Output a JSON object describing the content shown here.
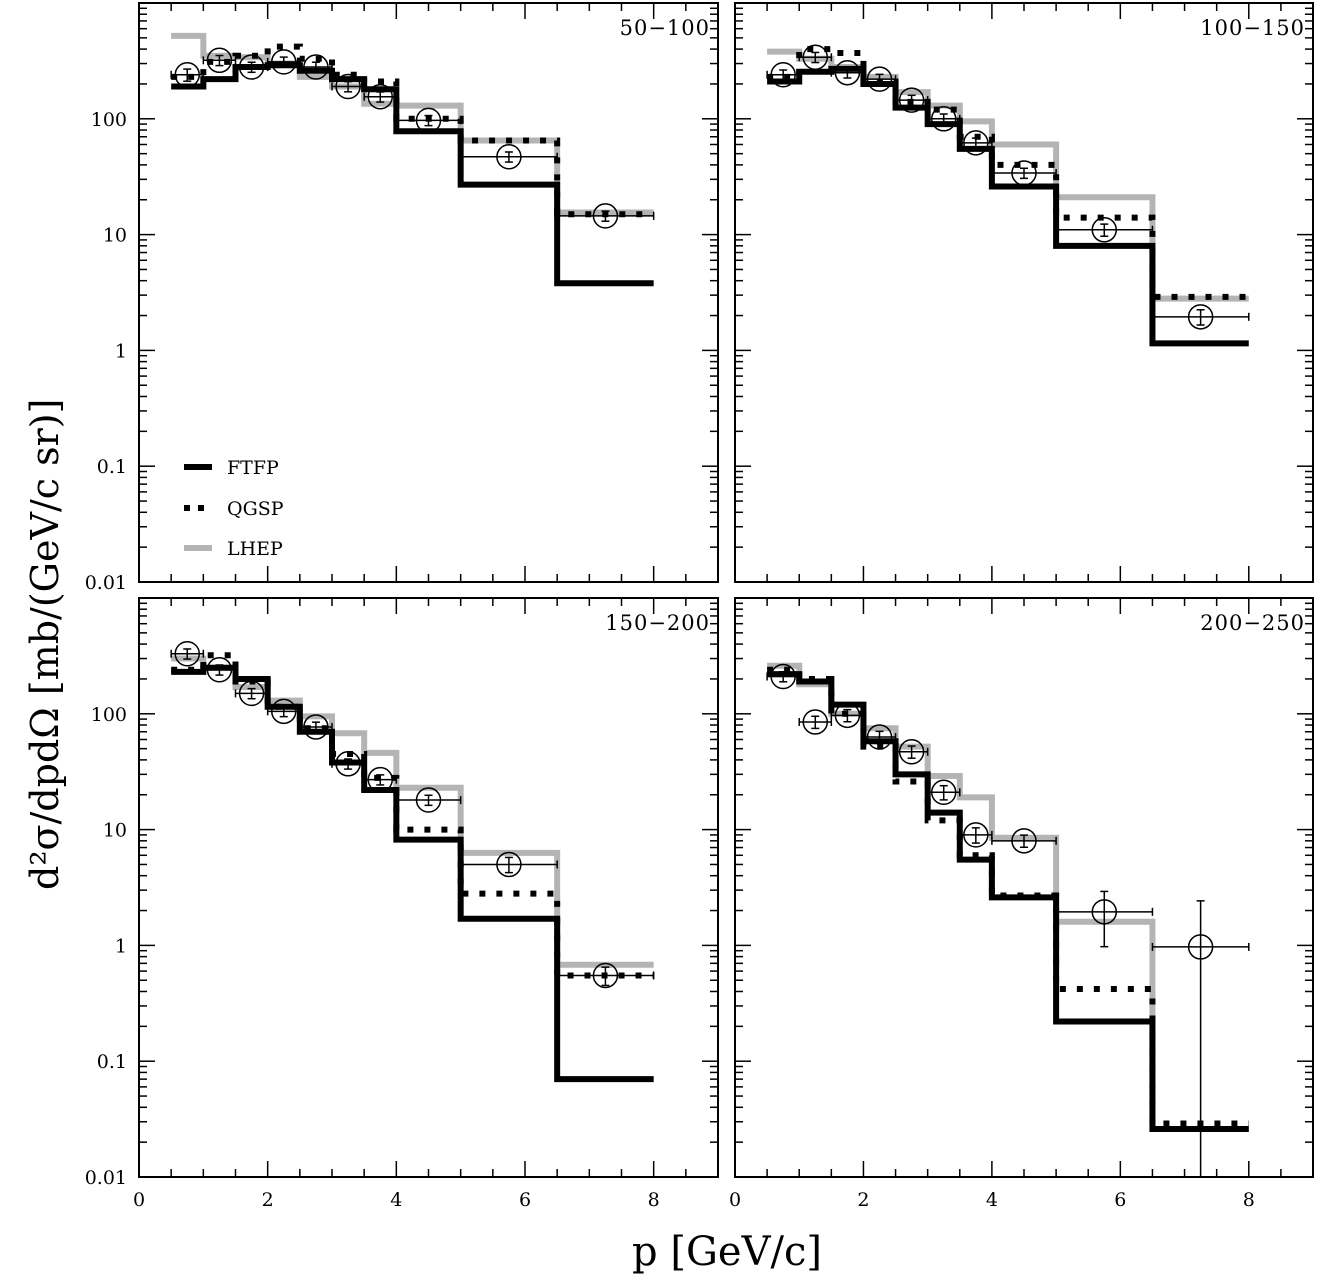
{
  "figure": {
    "xlabel": "p [GeV/c]",
    "ylabel": "d²σ/dpdΩ [mb/(GeV/c sr)]",
    "legend": [
      {
        "name": "FTFP",
        "style": "solid-black",
        "color": "#000000"
      },
      {
        "name": "QGSP",
        "style": "dotted-black",
        "color": "#000000"
      },
      {
        "name": "LHEP",
        "style": "solid-gray",
        "color": "#b4b4b4"
      }
    ],
    "colors": {
      "FTFP": "#000000",
      "QGSP": "#000000",
      "LHEP": "#b4b4b4",
      "data": "#000000"
    }
  },
  "chart_data": [
    {
      "type": "line",
      "title": "50−100",
      "xlim": [
        0,
        9
      ],
      "ylim": [
        0.01,
        1000
      ],
      "yscale": "log",
      "xticks": [
        "0",
        "2",
        "4",
        "6",
        "8"
      ],
      "yticks": [
        "0.01",
        "0.1",
        "1",
        "10",
        "100"
      ],
      "bin_edges": [
        0.5,
        1.0,
        1.5,
        2.0,
        2.5,
        3.0,
        3.5,
        4.0,
        5.0,
        6.5,
        8.0
      ],
      "series": [
        {
          "name": "FTFP",
          "values": [
            190,
            220,
            280,
            290,
            260,
            220,
            180,
            78,
            27,
            3.8
          ]
        },
        {
          "name": "QGSP",
          "values": [
            230,
            310,
            350,
            420,
            330,
            240,
            210,
            100,
            65,
            15
          ]
        },
        {
          "name": "LHEP",
          "values": [
            520,
            350,
            340,
            300,
            230,
            190,
            135,
            130,
            65,
            15.5
          ]
        }
      ],
      "data_points": {
        "x": [
          0.75,
          1.25,
          1.75,
          2.25,
          2.75,
          3.25,
          3.75,
          4.5,
          5.75,
          7.25
        ],
        "y": [
          240,
          320,
          280,
          310,
          280,
          190,
          155,
          97,
          47,
          14.5
        ],
        "yerr": [
          0.12,
          0.1,
          0.1,
          0.1,
          0.1,
          0.1,
          0.1,
          0.1,
          0.1,
          0.1
        ]
      }
    },
    {
      "type": "line",
      "title": "100−150",
      "xlim": [
        0,
        9
      ],
      "ylim": [
        0.01,
        1000
      ],
      "yscale": "log",
      "xticks": [
        "0",
        "2",
        "4",
        "6",
        "8"
      ],
      "yticks": [
        "0.01",
        "0.1",
        "1",
        "10",
        "100"
      ],
      "bin_edges": [
        0.5,
        1.0,
        1.5,
        2.0,
        2.5,
        3.0,
        3.5,
        4.0,
        5.0,
        6.5,
        8.0
      ],
      "series": [
        {
          "name": "FTFP",
          "values": [
            210,
            255,
            270,
            200,
            125,
            90,
            55,
            26,
            8,
            1.15
          ]
        },
        {
          "name": "QGSP",
          "values": [
            230,
            400,
            370,
            210,
            140,
            120,
            70,
            40,
            14,
            2.9
          ]
        },
        {
          "name": "LHEP",
          "values": [
            380,
            330,
            280,
            230,
            170,
            130,
            95,
            60,
            21,
            2.8
          ]
        }
      ],
      "data_points": {
        "x": [
          0.75,
          1.25,
          1.75,
          2.25,
          2.75,
          3.25,
          3.75,
          4.5,
          5.75,
          7.25
        ],
        "y": [
          240,
          340,
          250,
          220,
          145,
          100,
          62,
          34,
          11,
          1.95
        ],
        "yerr": [
          0.1,
          0.1,
          0.1,
          0.1,
          0.1,
          0.1,
          0.1,
          0.1,
          0.12,
          0.15
        ]
      }
    },
    {
      "type": "line",
      "title": "150−200",
      "xlim": [
        0,
        9
      ],
      "ylim": [
        0.01,
        1000
      ],
      "yscale": "log",
      "xticks": [
        "0",
        "2",
        "4",
        "6",
        "8"
      ],
      "yticks": [
        "0.01",
        "0.1",
        "1",
        "10",
        "100"
      ],
      "bin_edges": [
        0.5,
        1.0,
        1.5,
        2.0,
        2.5,
        3.0,
        3.5,
        4.0,
        5.0,
        6.5,
        8.0
      ],
      "series": [
        {
          "name": "FTFP",
          "values": [
            230,
            250,
            200,
            115,
            70,
            38,
            22,
            8.2,
            1.7,
            0.07
          ]
        },
        {
          "name": "QGSP",
          "values": [
            240,
            320,
            190,
            115,
            75,
            45,
            28,
            10,
            2.8,
            0.55
          ]
        },
        {
          "name": "LHEP",
          "values": [
            300,
            250,
            170,
            130,
            95,
            68,
            46,
            23,
            6.3,
            0.68
          ]
        }
      ],
      "data_points": {
        "x": [
          0.75,
          1.25,
          1.75,
          2.25,
          2.75,
          3.25,
          3.75,
          4.5,
          5.75,
          7.25
        ],
        "y": [
          330,
          240,
          150,
          105,
          77,
          37,
          27,
          18,
          5.0,
          0.55
        ],
        "yerr": [
          0.1,
          0.1,
          0.1,
          0.1,
          0.1,
          0.1,
          0.1,
          0.1,
          0.15,
          0.18
        ]
      }
    },
    {
      "type": "line",
      "title": "200−250",
      "xlim": [
        0,
        9
      ],
      "ylim": [
        0.01,
        1000
      ],
      "yscale": "log",
      "xticks": [
        "0",
        "2",
        "4",
        "6",
        "8"
      ],
      "yticks": [
        "0.01",
        "0.1",
        "1",
        "10",
        "100"
      ],
      "bin_edges": [
        0.5,
        1.0,
        1.5,
        2.0,
        2.5,
        3.0,
        3.5,
        4.0,
        5.0,
        6.5,
        8.0
      ],
      "series": [
        {
          "name": "FTFP",
          "values": [
            220,
            190,
            120,
            58,
            30,
            14,
            5.5,
            2.6,
            0.22,
            0.026
          ]
        },
        {
          "name": "QGSP",
          "values": [
            240,
            200,
            100,
            52,
            26,
            12,
            6,
            2.7,
            0.42,
            0.029
          ]
        },
        {
          "name": "LHEP",
          "values": [
            260,
            180,
            100,
            75,
            52,
            29,
            19,
            8.5,
            1.6,
            0.026
          ]
        }
      ],
      "data_points": {
        "x": [
          0.75,
          1.25,
          1.75,
          2.25,
          2.75,
          3.25,
          3.75,
          4.5,
          5.75,
          7.25
        ],
        "y": [
          210,
          85,
          97,
          63,
          47,
          21,
          9,
          8,
          1.95,
          0.97
        ],
        "yerr": [
          0.1,
          0.12,
          0.12,
          0.12,
          0.12,
          0.14,
          0.15,
          0.12,
          0.5,
          1.5
        ]
      }
    }
  ]
}
